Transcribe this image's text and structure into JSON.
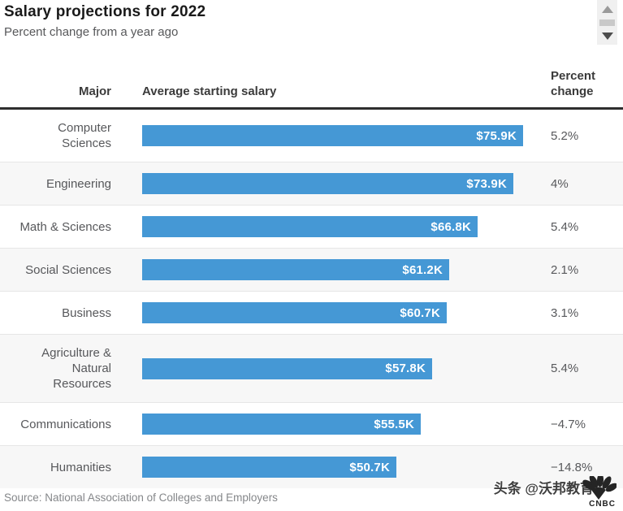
{
  "header": {
    "title": "Salary projections for 2022",
    "subtitle": "Percent change from a year ago"
  },
  "table": {
    "columns": [
      "Major",
      "Average starting salary",
      "Percent change"
    ],
    "rows": [
      {
        "major": "Computer Sciences",
        "major_lines": [
          "Computer",
          "Sciences"
        ],
        "salary_label": "$75.9K",
        "salary_k": 75.9,
        "percent_change": "5.2%"
      },
      {
        "major": "Engineering",
        "major_lines": [
          "Engineering"
        ],
        "salary_label": "$73.9K",
        "salary_k": 73.9,
        "percent_change": "4%"
      },
      {
        "major": "Math & Sciences",
        "major_lines": [
          "Math & Sciences"
        ],
        "salary_label": "$66.8K",
        "salary_k": 66.8,
        "percent_change": "5.4%"
      },
      {
        "major": "Social Sciences",
        "major_lines": [
          "Social Sciences"
        ],
        "salary_label": "$61.2K",
        "salary_k": 61.2,
        "percent_change": "2.1%"
      },
      {
        "major": "Business",
        "major_lines": [
          "Business"
        ],
        "salary_label": "$60.7K",
        "salary_k": 60.7,
        "percent_change": "3.1%"
      },
      {
        "major": "Agriculture & Natural Resources",
        "major_lines": [
          "Agriculture &",
          "Natural",
          "Resources"
        ],
        "salary_label": "$57.8K",
        "salary_k": 57.8,
        "percent_change": "5.4%"
      },
      {
        "major": "Communications",
        "major_lines": [
          "Communications"
        ],
        "salary_label": "$55.5K",
        "salary_k": 55.5,
        "percent_change": "−4.7%"
      },
      {
        "major": "Humanities",
        "major_lines": [
          "Humanities"
        ],
        "salary_label": "$50.7K",
        "salary_k": 50.7,
        "percent_change": "−14.8%"
      }
    ]
  },
  "chart_data": {
    "type": "bar",
    "orientation": "horizontal",
    "title": "Salary projections for 2022",
    "subtitle": "Percent change from a year ago",
    "categories": [
      "Computer Sciences",
      "Engineering",
      "Math & Sciences",
      "Social Sciences",
      "Business",
      "Agriculture & Natural Resources",
      "Communications",
      "Humanities"
    ],
    "series": [
      {
        "name": "Average starting salary",
        "unit": "USD thousands",
        "values": [
          75.9,
          73.9,
          66.8,
          61.2,
          60.7,
          57.8,
          55.5,
          50.7
        ],
        "labels": [
          "$75.9K",
          "$73.9K",
          "$66.8K",
          "$61.2K",
          "$60.7K",
          "$57.8K",
          "$55.5K",
          "$50.7K"
        ]
      },
      {
        "name": "Percent change",
        "values": [
          5.2,
          4,
          5.4,
          2.1,
          3.1,
          5.4,
          -4.7,
          -14.8
        ],
        "labels": [
          "5.2%",
          "4%",
          "5.4%",
          "2.1%",
          "3.1%",
          "5.4%",
          "−4.7%",
          "−14.8%"
        ]
      }
    ],
    "xlim": [
      0,
      80
    ],
    "grid": false,
    "legend": "none",
    "bar_color": "#4598d5"
  },
  "footer": {
    "source": "Source: National Association of Colleges and Employers",
    "watermark_text": "头条 @沃邦教育",
    "watermark_logo": "CNBC"
  },
  "colors": {
    "bar": "#4598d5",
    "bar_label": "#ffffff",
    "alt_row_bg": "#f7f7f7",
    "header_rule": "#2e2e2e",
    "row_divider": "#e6e6e6",
    "title_text": "#1a1a1a",
    "body_text": "#57585b",
    "source_text": "#85878a"
  },
  "scrollbar": {
    "up_icon": "triangle-up",
    "down_icon": "triangle-down"
  }
}
